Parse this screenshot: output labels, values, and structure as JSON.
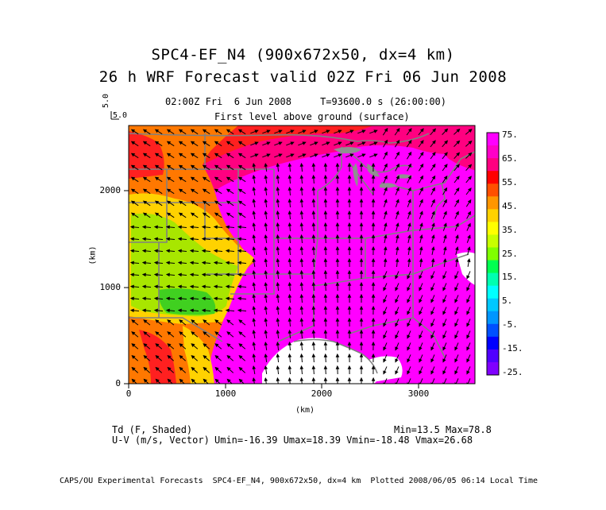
{
  "title_line1": "SPC4-EF_N4 (900x672x50, dx=4 km)",
  "title_line2": "26 h WRF Forecast valid 02Z Fri 06 Jun 2008",
  "valid_line": "02:00Z Fri  6 Jun 2008     T=93600.0 s (26:00:00)",
  "level_label": "First level above ground (surface)",
  "vector_scale_label": "5.0",
  "vector_scale_label2": "5.0",
  "axes": {
    "x_label": "(km)",
    "y_label": "(km)",
    "x_ticks": [
      "0",
      "1000",
      "2000",
      "3000"
    ],
    "y_ticks": [
      "0",
      "1000",
      "2000"
    ]
  },
  "colorbar": {
    "labels": [
      "75.",
      "65.",
      "55.",
      "45.",
      "35.",
      "25.",
      "15.",
      "5.",
      "-5.",
      "-15.",
      "-25."
    ],
    "colors": [
      "#ff00ff",
      "#ff00c8",
      "#ff0080",
      "#ff0000",
      "#ff5000",
      "#ff9600",
      "#ffd200",
      "#ffff00",
      "#c8ff00",
      "#80ff00",
      "#00ff50",
      "#00ffb0",
      "#00ffff",
      "#00c8ff",
      "#0096ff",
      "#0050ff",
      "#0000ff",
      "#5000ff",
      "#8000ff"
    ]
  },
  "field_label1": "Td (F, Shaded)",
  "field_label2": "U-V (m/s, Vector)",
  "min_max": "Min=13.5 Max=78.8",
  "uv_stats": "Umin=-16.39 Umax=18.39 Vmin=-18.48 Vmax=26.68",
  "footer": "CAPS/OU Experimental Forecasts  SPC4-EF_N4, 900x672x50, dx=4 km  Plotted 2008/06/05 06:14 Local Time",
  "map_colors": {
    "moist": "#ff00ff",
    "warm_pink": "#ff0080",
    "red": "#ff2020",
    "orange": "#ff7800",
    "yellow": "#ffd200",
    "lime": "#a8e600",
    "green": "#40d020",
    "ocean_white": "#ffffff",
    "borders": "#808080"
  }
}
